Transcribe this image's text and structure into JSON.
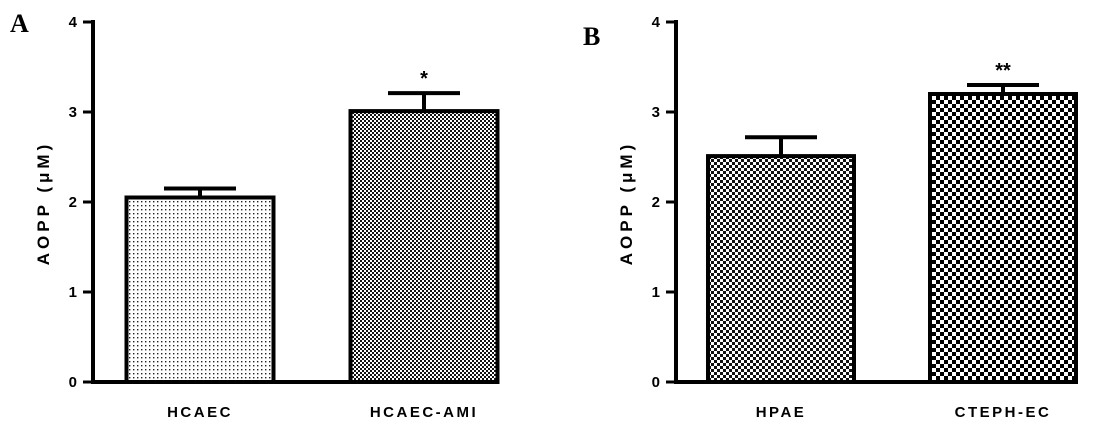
{
  "chart_data": [
    {
      "type": "bar",
      "panel_label": "A",
      "ylabel": "AOPP (μM)",
      "ylim": [
        0,
        4
      ],
      "yticks": [
        "0",
        "1",
        "2",
        "3",
        "4"
      ],
      "categories": [
        "HCAEC",
        "HCAEC-AMI"
      ],
      "values": [
        2.05,
        3.01
      ],
      "errors": [
        0.1,
        0.2
      ],
      "significance": [
        "",
        "*"
      ],
      "patterns": [
        "fine-dots",
        "checker-small"
      ]
    },
    {
      "type": "bar",
      "panel_label": "B",
      "ylabel": "AOPP (μM)",
      "ylim": [
        0,
        4
      ],
      "yticks": [
        "0",
        "1",
        "2",
        "3",
        "4"
      ],
      "categories": [
        "HPAE",
        "CTEPH-EC"
      ],
      "values": [
        2.51,
        3.2
      ],
      "errors": [
        0.21,
        0.1
      ],
      "significance": [
        "",
        "**"
      ],
      "patterns": [
        "checker-medium",
        "checker-large"
      ]
    }
  ]
}
